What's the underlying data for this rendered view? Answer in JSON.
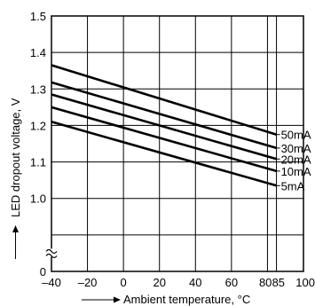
{
  "chart_data": {
    "type": "line",
    "xlabel": "Ambient temperature, °C",
    "ylabel": "LED dropout voltage, V",
    "xlim": [
      -40,
      100
    ],
    "ylim": [
      0.8,
      1.5
    ],
    "x_ticks": [
      -40,
      -20,
      0,
      20,
      40,
      60,
      80,
      85,
      100
    ],
    "x_tick_labels": [
      "–40",
      "–20",
      "0",
      "20",
      "40",
      "60",
      "80",
      "85",
      "100"
    ],
    "y_ticks": [
      0.8,
      0.9,
      1.0,
      1.1,
      1.2,
      1.3,
      1.4,
      1.5
    ],
    "y_tick_labels": [
      "0",
      "",
      "1.0",
      "1.1",
      "1.2",
      "1.3",
      "1.4",
      "1.5"
    ],
    "y_axis_break": true,
    "grid": true,
    "series": [
      {
        "name": "50mA",
        "x": [
          -40,
          85
        ],
        "y": [
          1.365,
          1.175
        ]
      },
      {
        "name": "30mA",
        "x": [
          -40,
          85
        ],
        "y": [
          1.318,
          1.138
        ]
      },
      {
        "name": "20mA",
        "x": [
          -40,
          85
        ],
        "y": [
          1.285,
          1.108
        ]
      },
      {
        "name": "10mA",
        "x": [
          -40,
          85
        ],
        "y": [
          1.25,
          1.075
        ]
      },
      {
        "name": "5mA",
        "x": [
          -40,
          85
        ],
        "y": [
          1.21,
          1.035
        ]
      }
    ]
  }
}
